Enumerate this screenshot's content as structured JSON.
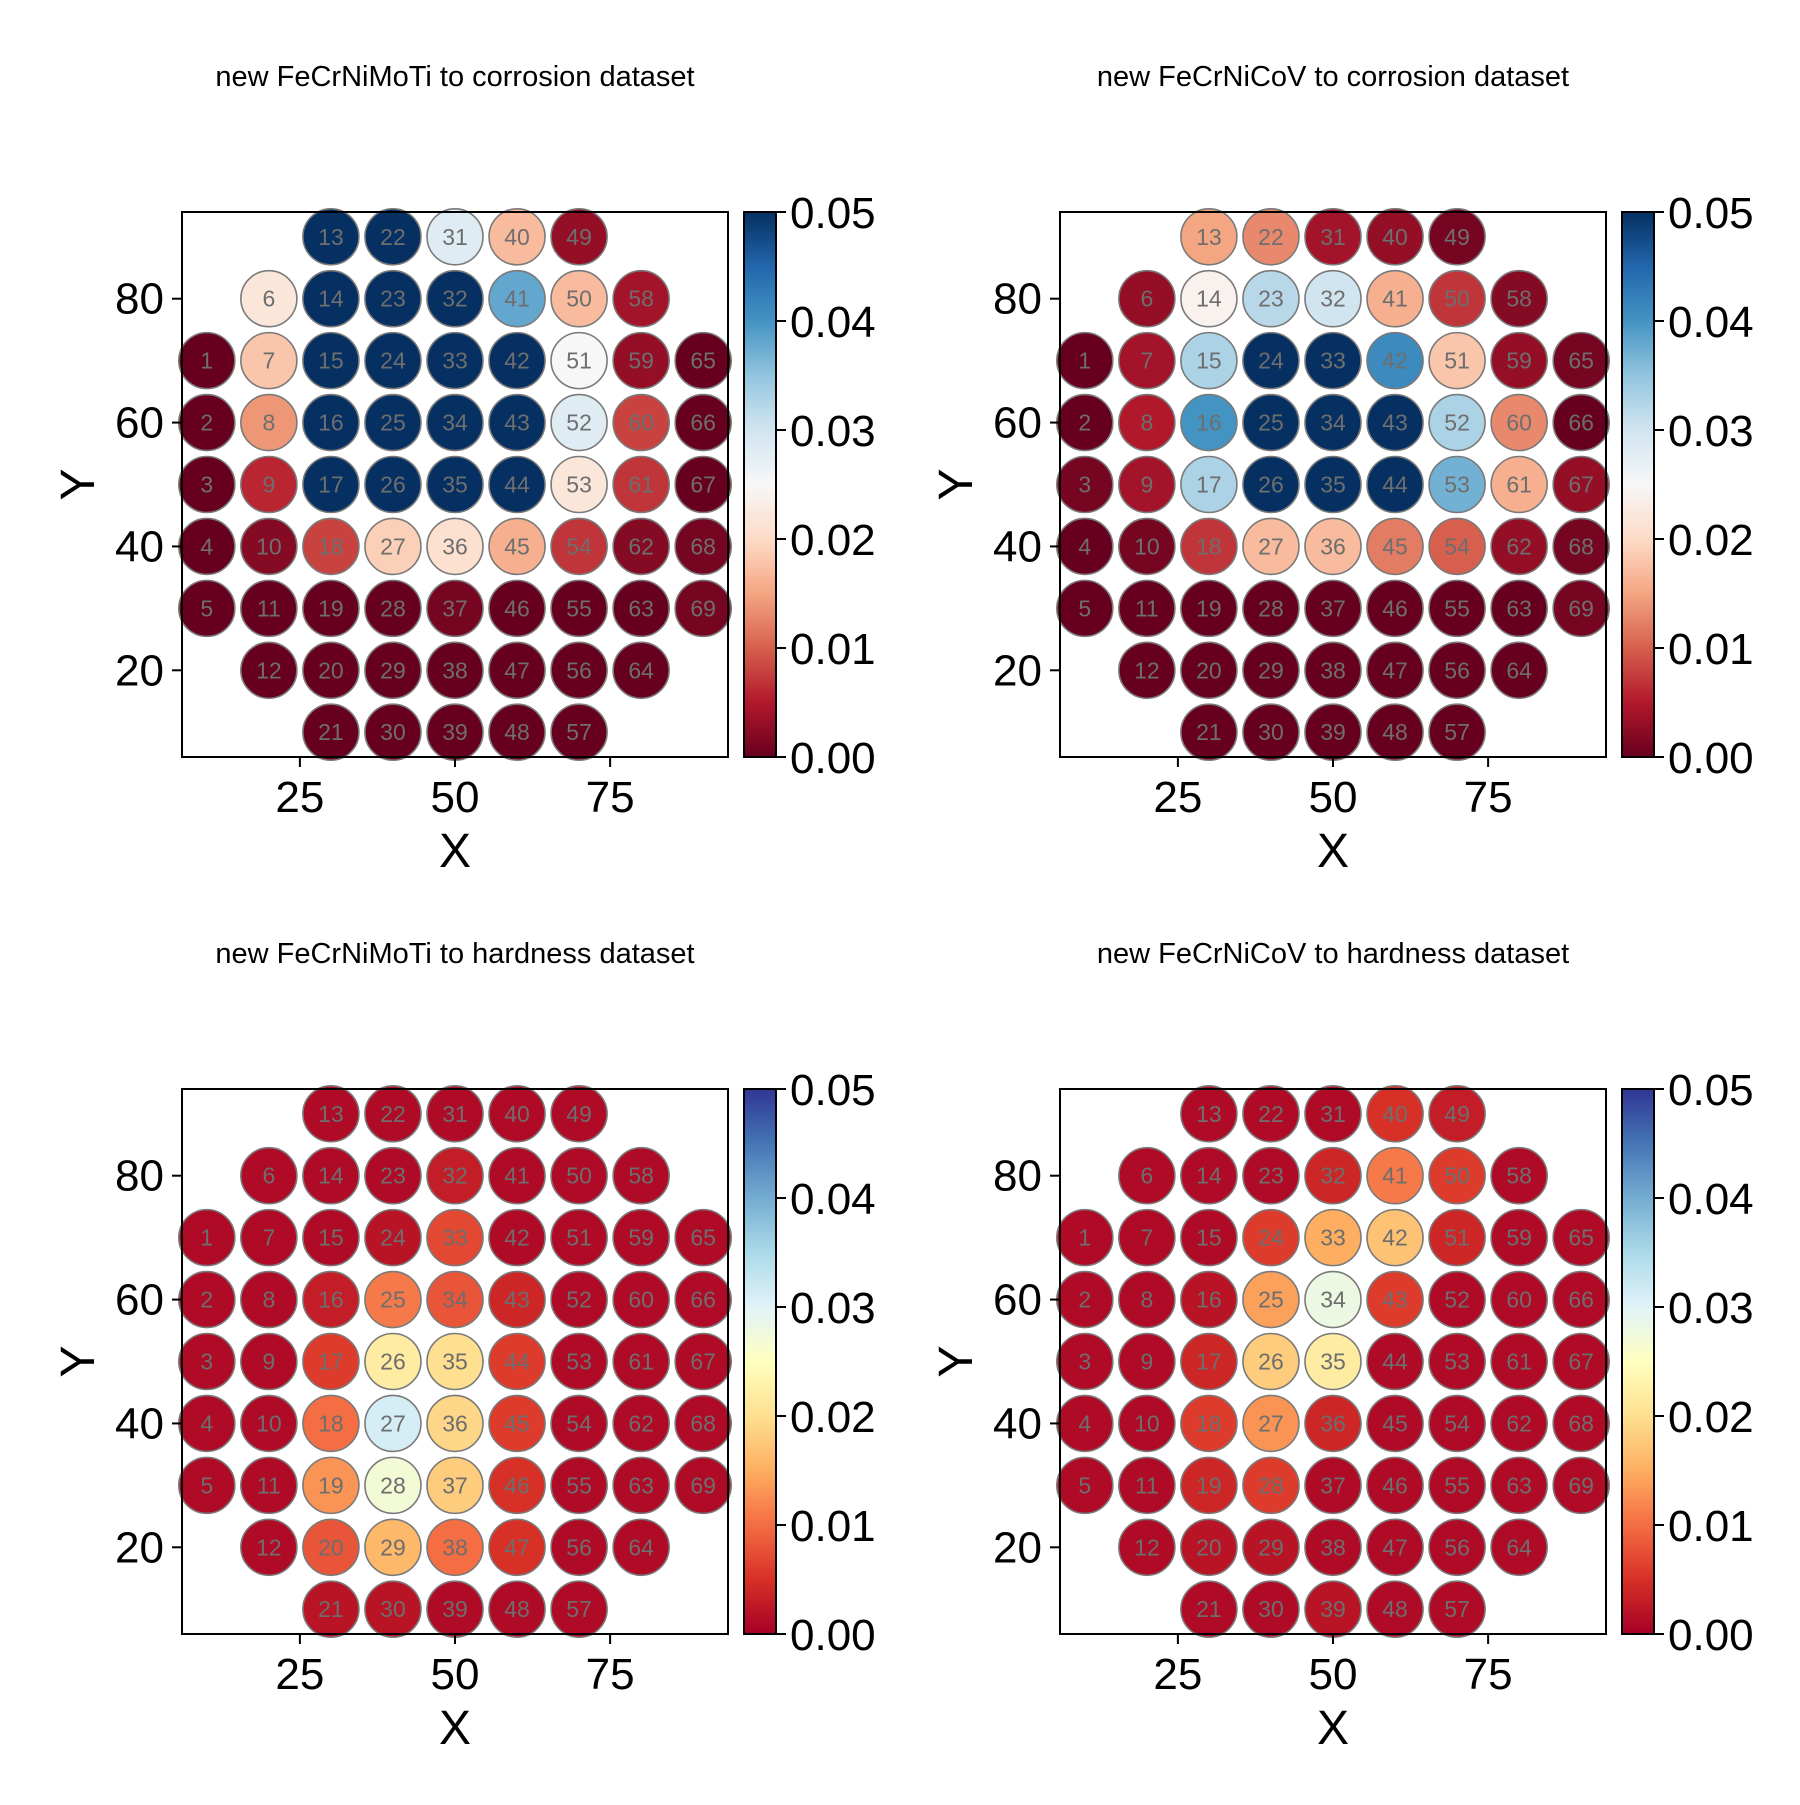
{
  "chart_data": [
    {
      "type": "scatter",
      "title": "new FeCrNiMoTi to corrosion dataset",
      "xlabel": "X",
      "ylabel": "Y",
      "xlim": [
        6,
        94
      ],
      "ylim": [
        6,
        94
      ],
      "xticks": [
        25,
        50,
        75
      ],
      "yticks": [
        20,
        40,
        60,
        80
      ],
      "colorbar": {
        "min": 0.0,
        "max": 0.05,
        "ticks": [
          "0.00",
          "0.01",
          "0.02",
          "0.03",
          "0.04",
          "0.05"
        ],
        "colormap": "RdBu"
      },
      "values": [
        0.0,
        0.0,
        0.0,
        0.0,
        0.0,
        0.022,
        0.018,
        0.014,
        0.006,
        0.002,
        0.0,
        0.0,
        0.05,
        0.05,
        0.05,
        0.05,
        0.05,
        0.008,
        0.0,
        0.0,
        0.0,
        0.05,
        0.05,
        0.05,
        0.05,
        0.05,
        0.019,
        0.0,
        0.0,
        0.0,
        0.028,
        0.05,
        0.05,
        0.05,
        0.05,
        0.021,
        0.001,
        0.0,
        0.0,
        0.017,
        0.038,
        0.05,
        0.05,
        0.05,
        0.016,
        0.0,
        0.0,
        0.0,
        0.003,
        0.017,
        0.025,
        0.028,
        0.022,
        0.007,
        0.0,
        0.0,
        0.0,
        0.004,
        0.003,
        0.008,
        0.007,
        0.002,
        0.0,
        0.0,
        0.0,
        0.0,
        0.0,
        0.001,
        0.001
      ]
    },
    {
      "type": "scatter",
      "title": "new FeCrNiCoV to corrosion dataset",
      "xlabel": "X",
      "ylabel": "Y",
      "xlim": [
        6,
        94
      ],
      "ylim": [
        6,
        94
      ],
      "xticks": [
        25,
        50,
        75
      ],
      "yticks": [
        20,
        40,
        60,
        80
      ],
      "colorbar": {
        "min": 0.0,
        "max": 0.05,
        "ticks": [
          "0.00",
          "0.01",
          "0.02",
          "0.03",
          "0.04",
          "0.05"
        ],
        "colormap": "RdBu"
      },
      "values": [
        0.0,
        0.0,
        0.001,
        0.0,
        0.0,
        0.003,
        0.004,
        0.005,
        0.004,
        0.001,
        0.0,
        0.0,
        0.015,
        0.024,
        0.033,
        0.04,
        0.033,
        0.007,
        0.0,
        0.0,
        0.0,
        0.013,
        0.032,
        0.05,
        0.05,
        0.05,
        0.017,
        0.0,
        0.0,
        0.0,
        0.004,
        0.03,
        0.05,
        0.05,
        0.05,
        0.017,
        0.0,
        0.0,
        0.0,
        0.003,
        0.016,
        0.041,
        0.05,
        0.05,
        0.012,
        0.0,
        0.0,
        0.0,
        0.001,
        0.007,
        0.018,
        0.033,
        0.037,
        0.01,
        0.0,
        0.0,
        0.0,
        0.002,
        0.003,
        0.013,
        0.016,
        0.003,
        0.0,
        0.0,
        0.001,
        0.0,
        0.003,
        0.001,
        0.001
      ]
    },
    {
      "type": "scatter",
      "title": "new FeCrNiMoTi to hardness dataset",
      "xlabel": "X",
      "ylabel": "Y",
      "xlim": [
        6,
        94
      ],
      "ylim": [
        6,
        94
      ],
      "xticks": [
        25,
        50,
        75
      ],
      "yticks": [
        20,
        40,
        60,
        80
      ],
      "colorbar": {
        "min": 0.0,
        "max": 0.05,
        "ticks": [
          "0.00",
          "0.01",
          "0.02",
          "0.03",
          "0.04",
          "0.05"
        ],
        "colormap": "RdYlBu"
      },
      "values": [
        0.001,
        0.001,
        0.001,
        0.001,
        0.001,
        0.001,
        0.001,
        0.001,
        0.001,
        0.001,
        0.001,
        0.001,
        0.001,
        0.001,
        0.001,
        0.003,
        0.006,
        0.01,
        0.013,
        0.008,
        0.002,
        0.001,
        0.001,
        0.002,
        0.011,
        0.022,
        0.031,
        0.027,
        0.016,
        0.002,
        0.001,
        0.003,
        0.007,
        0.008,
        0.02,
        0.019,
        0.018,
        0.01,
        0.001,
        0.001,
        0.001,
        0.001,
        0.004,
        0.006,
        0.006,
        0.005,
        0.005,
        0.001,
        0.001,
        0.001,
        0.001,
        0.001,
        0.001,
        0.001,
        0.001,
        0.001,
        0.001,
        0.001,
        0.001,
        0.001,
        0.001,
        0.001,
        0.001,
        0.001,
        0.001,
        0.001,
        0.001,
        0.001,
        0.001
      ]
    },
    {
      "type": "scatter",
      "title": "new FeCrNiCoV to hardness dataset",
      "xlabel": "X",
      "ylabel": "Y",
      "xlim": [
        6,
        94
      ],
      "ylim": [
        6,
        94
      ],
      "xticks": [
        25,
        50,
        75
      ],
      "yticks": [
        20,
        40,
        60,
        80
      ],
      "colorbar": {
        "min": 0.0,
        "max": 0.05,
        "ticks": [
          "0.00",
          "0.01",
          "0.02",
          "0.03",
          "0.04",
          "0.05"
        ],
        "colormap": "RdYlBu"
      },
      "values": [
        0.001,
        0.001,
        0.001,
        0.001,
        0.001,
        0.001,
        0.001,
        0.001,
        0.001,
        0.001,
        0.001,
        0.001,
        0.001,
        0.001,
        0.001,
        0.002,
        0.004,
        0.006,
        0.004,
        0.002,
        0.001,
        0.001,
        0.001,
        0.006,
        0.014,
        0.018,
        0.013,
        0.006,
        0.002,
        0.001,
        0.001,
        0.004,
        0.015,
        0.028,
        0.022,
        0.004,
        0.001,
        0.001,
        0.002,
        0.005,
        0.011,
        0.017,
        0.006,
        0.001,
        0.001,
        0.001,
        0.001,
        0.001,
        0.003,
        0.006,
        0.004,
        0.001,
        0.001,
        0.001,
        0.001,
        0.001,
        0.001,
        0.001,
        0.001,
        0.001,
        0.001,
        0.001,
        0.001,
        0.001,
        0.001,
        0.001,
        0.001,
        0.001,
        0.001
      ]
    }
  ]
}
